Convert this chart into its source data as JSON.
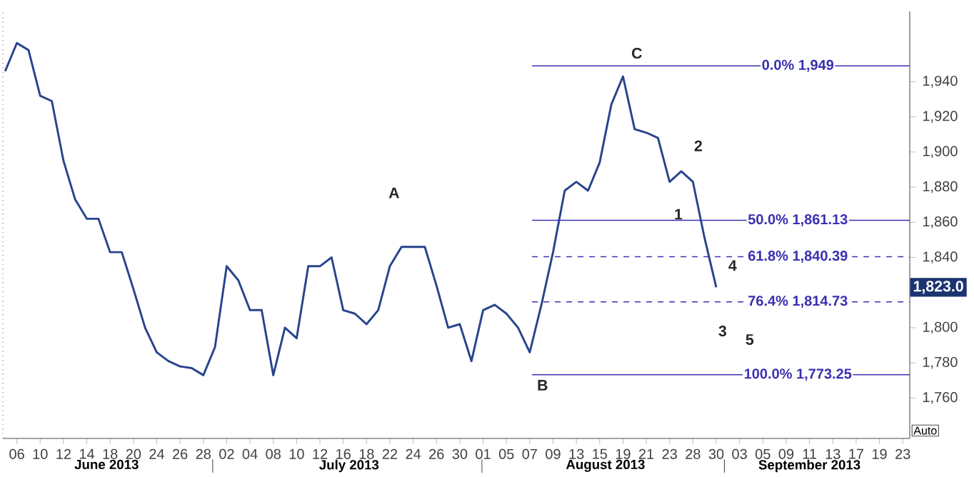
{
  "chart_data": {
    "type": "line",
    "categories": [
      null,
      "06",
      null,
      "10",
      null,
      "12",
      null,
      "14",
      null,
      "18",
      null,
      "20",
      null,
      "24",
      null,
      "26",
      null,
      "28",
      null,
      "02",
      null,
      "04",
      null,
      "08",
      null,
      "10",
      null,
      "12",
      null,
      "16",
      null,
      "18",
      null,
      "22",
      null,
      "24",
      null,
      "26",
      null,
      "30",
      null,
      "01",
      null,
      "05",
      null,
      "07",
      null,
      "09",
      null,
      "13",
      null,
      "15",
      null,
      "19",
      null,
      "21",
      null,
      "23",
      null,
      "28",
      null,
      "30",
      null,
      "03",
      null,
      "05",
      null,
      "09",
      null,
      "11",
      null,
      "13",
      null,
      "17",
      null,
      "19",
      null,
      "23"
    ],
    "series": [
      {
        "color": "#28448c",
        "values": [
          1946,
          1962,
          1958,
          1932,
          1929,
          1895,
          1873,
          1862,
          1862,
          1843,
          1843,
          1822,
          1800,
          1786,
          1781,
          1778,
          1777,
          1773,
          1789,
          1835,
          1827,
          1810,
          1810,
          1773,
          1800,
          1794,
          1835,
          1835,
          1840,
          1810,
          1808,
          1802,
          1810,
          1835,
          1846,
          1846,
          1846,
          1824,
          1800,
          1802,
          1781,
          1810,
          1813,
          1808,
          1800,
          1786,
          1813,
          1843,
          1878,
          1883,
          1878,
          1894,
          1927,
          1943,
          1913,
          1911,
          1908,
          1883,
          1889,
          1883,
          1851,
          1823,
          null,
          null,
          null,
          null,
          null,
          null,
          null,
          null,
          null,
          null,
          null,
          null,
          null,
          null,
          null,
          null
        ]
      }
    ],
    "ylim": [
      1737,
      1980
    ],
    "yticks": [
      {
        "value": 1760,
        "label": "1,760"
      },
      {
        "value": 1780,
        "label": "1,780"
      },
      {
        "value": 1800,
        "label": "1,800"
      },
      {
        "value": 1820,
        "label": null
      },
      {
        "value": 1840,
        "label": "1,840"
      },
      {
        "value": 1860,
        "label": "1,860"
      },
      {
        "value": 1880,
        "label": "1,880"
      },
      {
        "value": 1900,
        "label": "1,900"
      },
      {
        "value": 1920,
        "label": "1,920"
      },
      {
        "value": 1940,
        "label": "1,940"
      }
    ],
    "ref_lines": [
      {
        "axis": "y",
        "value": 1949,
        "label": "0.0%  1,949",
        "color": "#3a30b0",
        "line_style": "solid"
      },
      {
        "axis": "y",
        "value": 1861.13,
        "label": "50.0%  1,861.13",
        "color": "#3a30b0",
        "line_style": "solid"
      },
      {
        "axis": "y",
        "value": 1840.39,
        "label": "61.8%  1,840.39",
        "color": "#3a30b0",
        "line_style": "dashed"
      },
      {
        "axis": "y",
        "value": 1814.73,
        "label": "76.4%  1,814.73",
        "color": "#3a30b0",
        "line_style": "dashed"
      },
      {
        "axis": "y",
        "value": 1773.25,
        "label": "100.0%  1,773.25",
        "color": "#3a30b0",
        "line_style": "solid"
      }
    ],
    "annotations": [
      "A",
      "B",
      "C",
      "1",
      "2",
      "3",
      "4",
      "5",
      {
        "text": "1,823.0",
        "y": 1823
      },
      "June 2013",
      "July 2013",
      "August 2013",
      "September 2013",
      "Auto"
    ],
    "grid": false,
    "marker": "none",
    "line_style": "solid"
  }
}
